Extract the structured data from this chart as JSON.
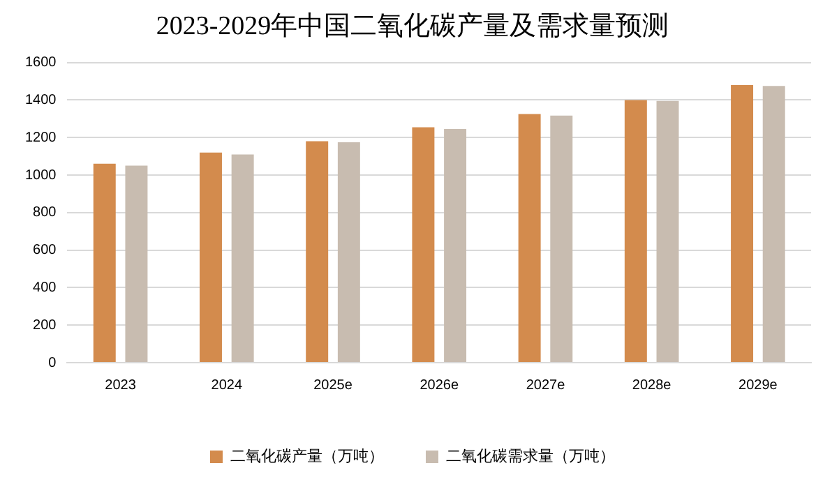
{
  "chart_data": {
    "type": "bar",
    "title": "2023-2029年中国二氧化碳产量及需求量预测",
    "categories": [
      "2023",
      "2024",
      "2025e",
      "2026e",
      "2027e",
      "2028e",
      "2029e"
    ],
    "series": [
      {
        "name": "二氧化碳产量（万吨）",
        "color": "#d38b4d",
        "values": [
          1060,
          1120,
          1180,
          1255,
          1325,
          1400,
          1480
        ]
      },
      {
        "name": "二氧化碳需求量（万吨）",
        "color": "#c8bcb0",
        "values": [
          1050,
          1110,
          1175,
          1245,
          1317,
          1395,
          1475
        ]
      }
    ],
    "ylim": [
      0,
      1600
    ],
    "yticks": [
      0,
      200,
      400,
      600,
      800,
      1000,
      1200,
      1400,
      1600
    ],
    "grid": "y",
    "legend": "bottom"
  }
}
